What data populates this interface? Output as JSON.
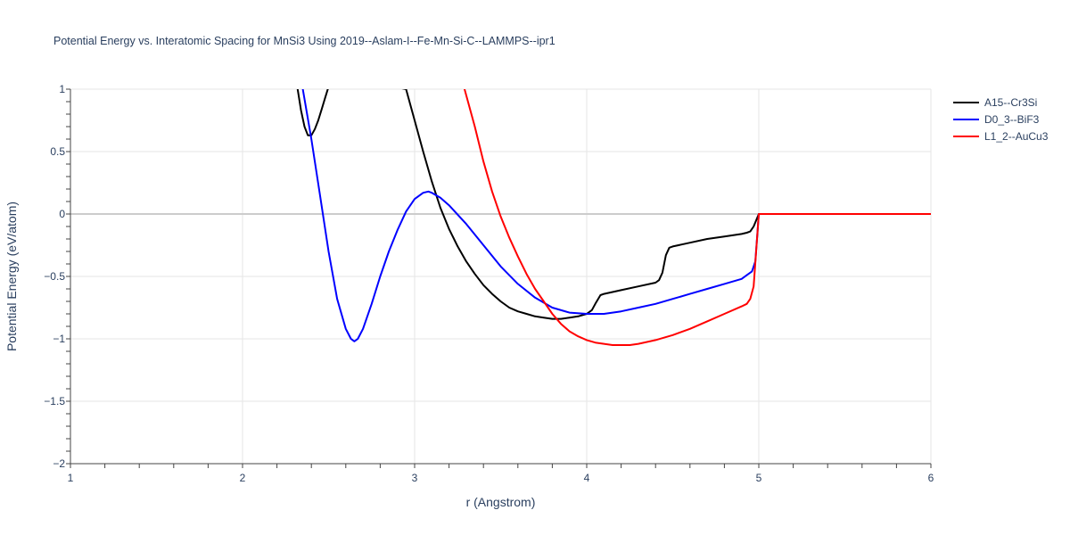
{
  "chart_data": {
    "type": "line",
    "title": "Potential Energy vs. Interatomic Spacing for MnSi3 Using 2019--Aslam-I--Fe-Mn-Si-C--LAMMPS--ipr1",
    "xlabel": "r (Angstrom)",
    "ylabel": "Potential Energy (eV/atom)",
    "xlim": [
      1,
      6
    ],
    "ylim": [
      -2,
      1
    ],
    "xticks": [
      1,
      2,
      3,
      4,
      5,
      6
    ],
    "xtick_labels": [
      "1",
      "2",
      "3",
      "4",
      "5",
      "6"
    ],
    "yticks": [
      1,
      0.5,
      0,
      -0.5,
      -1,
      -1.5,
      -2
    ],
    "ytick_labels": [
      "1",
      "0.5",
      "0",
      "−0.5",
      "−1",
      "−1.5",
      "−2"
    ],
    "grid": true,
    "legend_position": "top-right",
    "series": [
      {
        "name": "A15--Cr3Si",
        "color": "#000000",
        "x": [
          2.32,
          2.34,
          2.36,
          2.38,
          2.4,
          2.42,
          2.44,
          2.46,
          2.48,
          2.5,
          2.52,
          2.95,
          3.0,
          3.05,
          3.1,
          3.15,
          3.2,
          3.25,
          3.3,
          3.35,
          3.4,
          3.45,
          3.5,
          3.55,
          3.6,
          3.65,
          3.7,
          3.75,
          3.8,
          3.85,
          3.9,
          3.95,
          4.0,
          4.03,
          4.05,
          4.08,
          4.1,
          4.2,
          4.3,
          4.4,
          4.42,
          4.44,
          4.46,
          4.48,
          4.5,
          4.6,
          4.7,
          4.8,
          4.9,
          4.93,
          4.95,
          4.97,
          5.0,
          6.0
        ],
        "y": [
          1.0,
          0.83,
          0.7,
          0.63,
          0.63,
          0.68,
          0.75,
          0.84,
          0.93,
          1.02,
          1.12,
          1.0,
          0.75,
          0.5,
          0.26,
          0.05,
          -0.12,
          -0.26,
          -0.38,
          -0.48,
          -0.57,
          -0.64,
          -0.7,
          -0.75,
          -0.78,
          -0.8,
          -0.82,
          -0.83,
          -0.84,
          -0.84,
          -0.83,
          -0.82,
          -0.8,
          -0.77,
          -0.72,
          -0.65,
          -0.64,
          -0.61,
          -0.58,
          -0.55,
          -0.53,
          -0.47,
          -0.33,
          -0.27,
          -0.26,
          -0.23,
          -0.2,
          -0.18,
          -0.16,
          -0.15,
          -0.14,
          -0.1,
          0.0,
          0.0
        ]
      },
      {
        "name": "D0_3--BiF3",
        "color": "#0000ff",
        "x": [
          2.35,
          2.4,
          2.45,
          2.5,
          2.55,
          2.6,
          2.63,
          2.65,
          2.67,
          2.7,
          2.75,
          2.8,
          2.85,
          2.9,
          2.95,
          3.0,
          3.05,
          3.08,
          3.1,
          3.15,
          3.2,
          3.3,
          3.4,
          3.5,
          3.6,
          3.7,
          3.8,
          3.9,
          4.0,
          4.1,
          4.2,
          4.3,
          4.4,
          4.5,
          4.6,
          4.7,
          4.8,
          4.9,
          4.93,
          4.96,
          4.98,
          5.0,
          6.0
        ],
        "y": [
          1.0,
          0.6,
          0.15,
          -0.3,
          -0.68,
          -0.92,
          -1.0,
          -1.02,
          -1.0,
          -0.92,
          -0.72,
          -0.5,
          -0.3,
          -0.13,
          0.02,
          0.12,
          0.17,
          0.18,
          0.17,
          0.13,
          0.07,
          -0.08,
          -0.25,
          -0.42,
          -0.56,
          -0.67,
          -0.75,
          -0.79,
          -0.8,
          -0.8,
          -0.78,
          -0.75,
          -0.72,
          -0.68,
          -0.64,
          -0.6,
          -0.56,
          -0.52,
          -0.49,
          -0.46,
          -0.38,
          0.0,
          0.0
        ]
      },
      {
        "name": "L1_2--AuCu3",
        "color": "#ff0000",
        "x": [
          3.29,
          3.35,
          3.4,
          3.45,
          3.5,
          3.55,
          3.6,
          3.65,
          3.7,
          3.75,
          3.8,
          3.85,
          3.9,
          3.95,
          4.0,
          4.05,
          4.1,
          4.15,
          4.2,
          4.25,
          4.3,
          4.4,
          4.5,
          4.6,
          4.7,
          4.8,
          4.9,
          4.93,
          4.95,
          4.97,
          5.0,
          6.0
        ],
        "y": [
          1.0,
          0.7,
          0.42,
          0.18,
          -0.02,
          -0.19,
          -0.34,
          -0.48,
          -0.6,
          -0.7,
          -0.8,
          -0.88,
          -0.94,
          -0.98,
          -1.01,
          -1.03,
          -1.04,
          -1.05,
          -1.05,
          -1.05,
          -1.04,
          -1.01,
          -0.97,
          -0.92,
          -0.86,
          -0.8,
          -0.74,
          -0.72,
          -0.68,
          -0.58,
          0.0,
          0.0
        ]
      }
    ]
  }
}
